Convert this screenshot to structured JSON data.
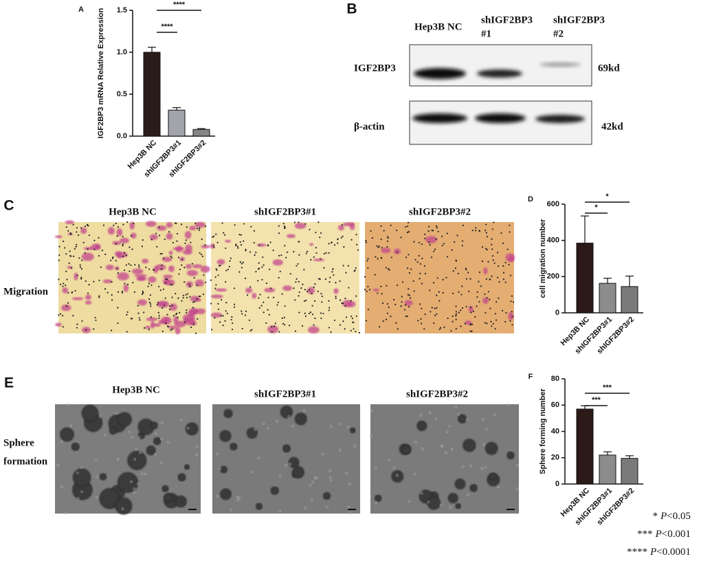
{
  "chart_data": [
    {
      "type": "bar",
      "panel": "A",
      "ylabel": "IGF2BP3 mRNA Relative Expression",
      "categories": [
        "Hep3B NC",
        "shIGF2BP3#1",
        "shIGF2BP3#2"
      ],
      "values": [
        1.0,
        0.31,
        0.08
      ],
      "errors": [
        0.06,
        0.03,
        0.01
      ],
      "colors": [
        "#2a1c1a",
        "#a3a3ab",
        "#858585"
      ],
      "ylim": [
        0,
        1.5
      ],
      "yticks": [
        {
          "value": 0,
          "label": "0.0"
        },
        {
          "value": 0.5,
          "label": "0.5"
        },
        {
          "value": 1,
          "label": "1.0"
        },
        {
          "value": 1.5,
          "label": "1.5"
        }
      ],
      "annotations": [
        "****",
        "****"
      ]
    },
    {
      "type": "bar",
      "panel": "D",
      "ylabel": "cell migration number",
      "categories": [
        "Hep3B NC",
        "shIGF2BP3#1",
        "shIGF2BP3#2"
      ],
      "values": [
        385,
        163,
        145
      ],
      "errors": [
        150,
        28,
        58
      ],
      "colors": [
        "#2b1a17",
        "#8c8c8c",
        "#7a7a7a"
      ],
      "ylim": [
        0,
        600
      ],
      "yticks": [
        0,
        200,
        400,
        600
      ],
      "annotations": [
        "*",
        "*"
      ]
    },
    {
      "type": "bar",
      "panel": "F",
      "ylabel": "Sphere forming number",
      "categories": [
        "Hep3B NC",
        "shIGF2BP3#1",
        "shIGF2BP3#2"
      ],
      "values": [
        57,
        22,
        19.5
      ],
      "errors": [
        2.5,
        2.5,
        2
      ],
      "colors": [
        "#2b1a17",
        "#8c8c8c",
        "#7a7a7a"
      ],
      "ylim": [
        0,
        80
      ],
      "yticks": [
        0,
        20,
        40,
        60,
        80
      ],
      "annotations": [
        "***",
        "***"
      ]
    }
  ],
  "western_blot": {
    "panel": "B",
    "columns": [
      [
        "Hep3B NC"
      ],
      [
        "shIGF2BP3",
        "#1"
      ],
      [
        "shIGF2BP3",
        "#2"
      ]
    ],
    "rows": [
      {
        "label": "IGF2BP3",
        "size": "69kd"
      },
      {
        "label": "β-actin",
        "size": "42kd"
      }
    ]
  },
  "migration": {
    "panel": "C",
    "columns": [
      "Hep3B NC",
      "shIGF2BP3#1",
      "shIGF2BP3#2"
    ],
    "row_label": "Migration"
  },
  "sphere": {
    "panel": "E",
    "columns": [
      "Hep3B NC",
      "shIGF2BP3#1",
      "shIGF2BP3#2"
    ],
    "row_label": [
      "Sphere",
      "formation"
    ]
  },
  "footnotes": [
    {
      "stars": "*",
      "p": "P",
      "threshold": "<0.05"
    },
    {
      "stars": "***",
      "p": "P",
      "threshold": "<0.001"
    },
    {
      "stars": "****",
      "p": "P",
      "threshold": "<0.0001"
    }
  ]
}
